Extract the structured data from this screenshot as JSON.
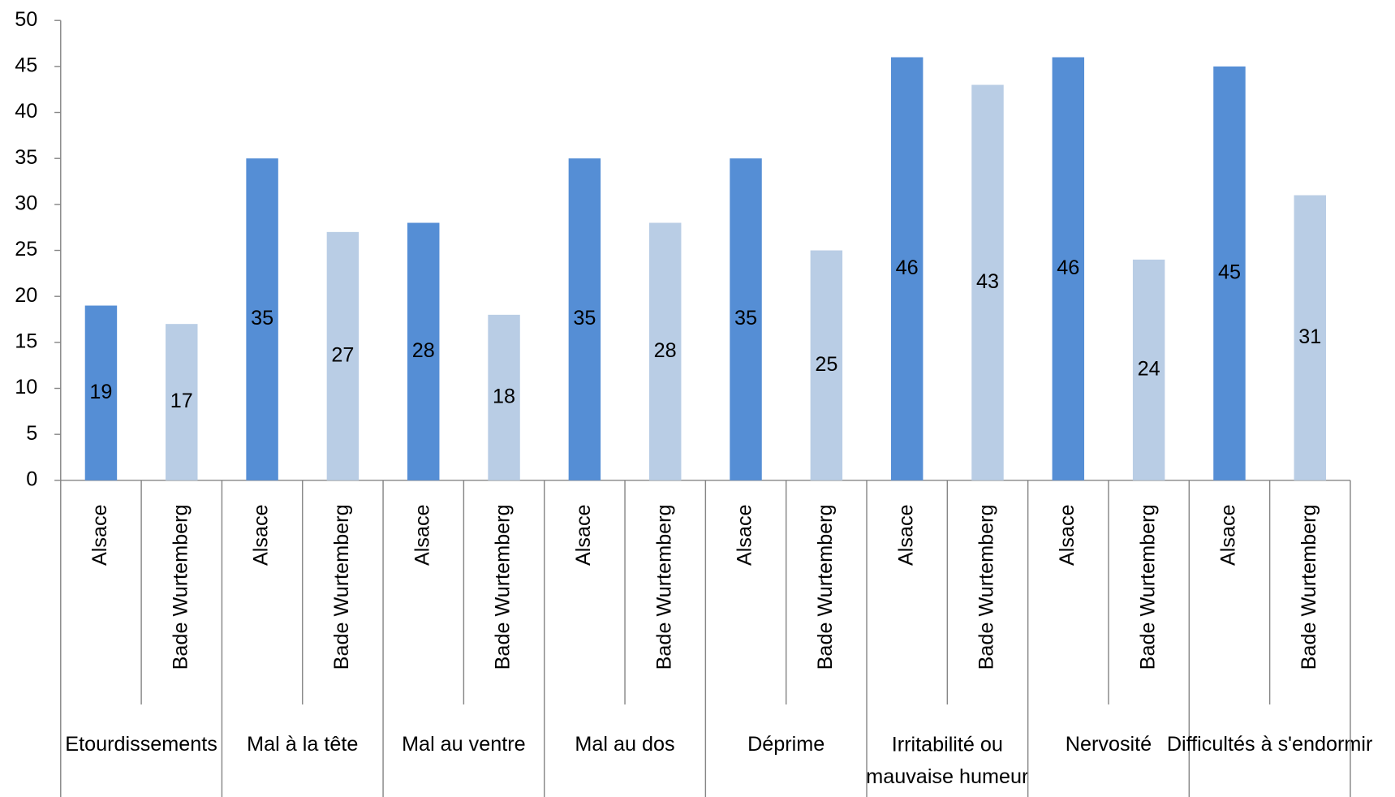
{
  "chart_data": {
    "type": "bar",
    "categories": [
      "Etourdissements",
      "Mal à la tête",
      "Mal au ventre",
      "Mal au dos",
      "Déprime",
      "Irritabilité ou\nmauvaise humeur",
      "Nervosité",
      "Difficultés à s'endormir"
    ],
    "series": [
      {
        "name": "Alsace",
        "color": "#558ed5",
        "values": [
          19,
          35,
          28,
          35,
          35,
          46,
          46,
          45
        ]
      },
      {
        "name": "Bade Wurtemberg",
        "color": "#b9cde5",
        "values": [
          17,
          27,
          18,
          28,
          25,
          43,
          24,
          31
        ]
      }
    ],
    "ylim": [
      0,
      50
    ],
    "yticks": [
      0,
      5,
      10,
      15,
      20,
      25,
      30,
      35,
      40,
      45,
      50
    ],
    "grid": false
  }
}
